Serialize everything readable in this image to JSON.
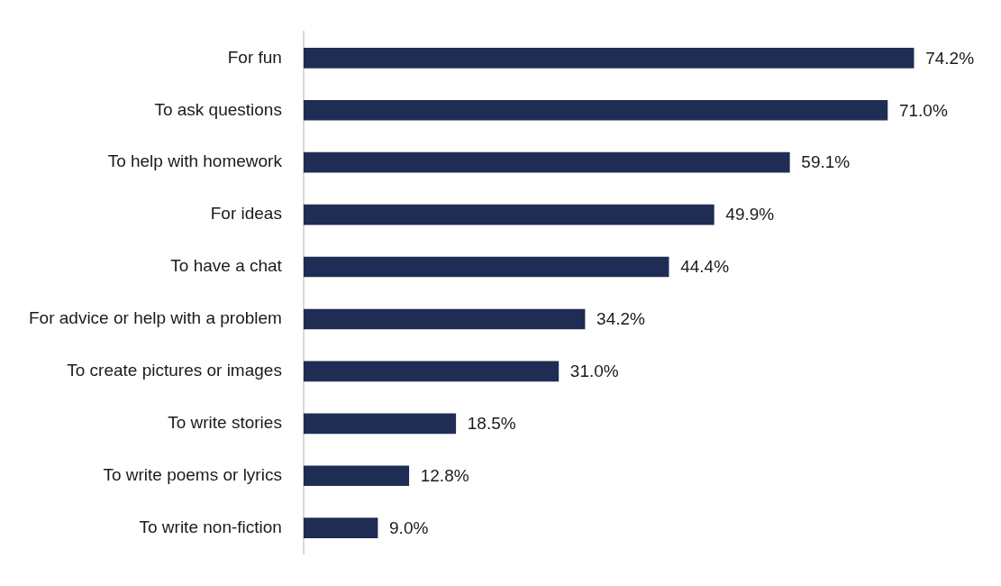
{
  "chart_data": {
    "type": "bar",
    "orientation": "horizontal",
    "categories": [
      "For fun",
      "To ask questions",
      "To help with homework",
      "For ideas",
      "To have a chat",
      "For advice or help with a problem",
      "To create pictures or images",
      "To write stories",
      "To write poems or lyrics",
      "To write non-fiction"
    ],
    "values": [
      74.2,
      71.0,
      59.1,
      49.9,
      44.4,
      34.2,
      31.0,
      18.5,
      12.8,
      9.0
    ],
    "value_labels": [
      "74.2%",
      "71.0%",
      "59.1%",
      "49.9%",
      "44.4%",
      "34.2%",
      "31.0%",
      "18.5%",
      "12.8%",
      "9.0%"
    ],
    "color": "#1f2d54",
    "grid": false,
    "legend": false,
    "tick_labels": "y"
  }
}
